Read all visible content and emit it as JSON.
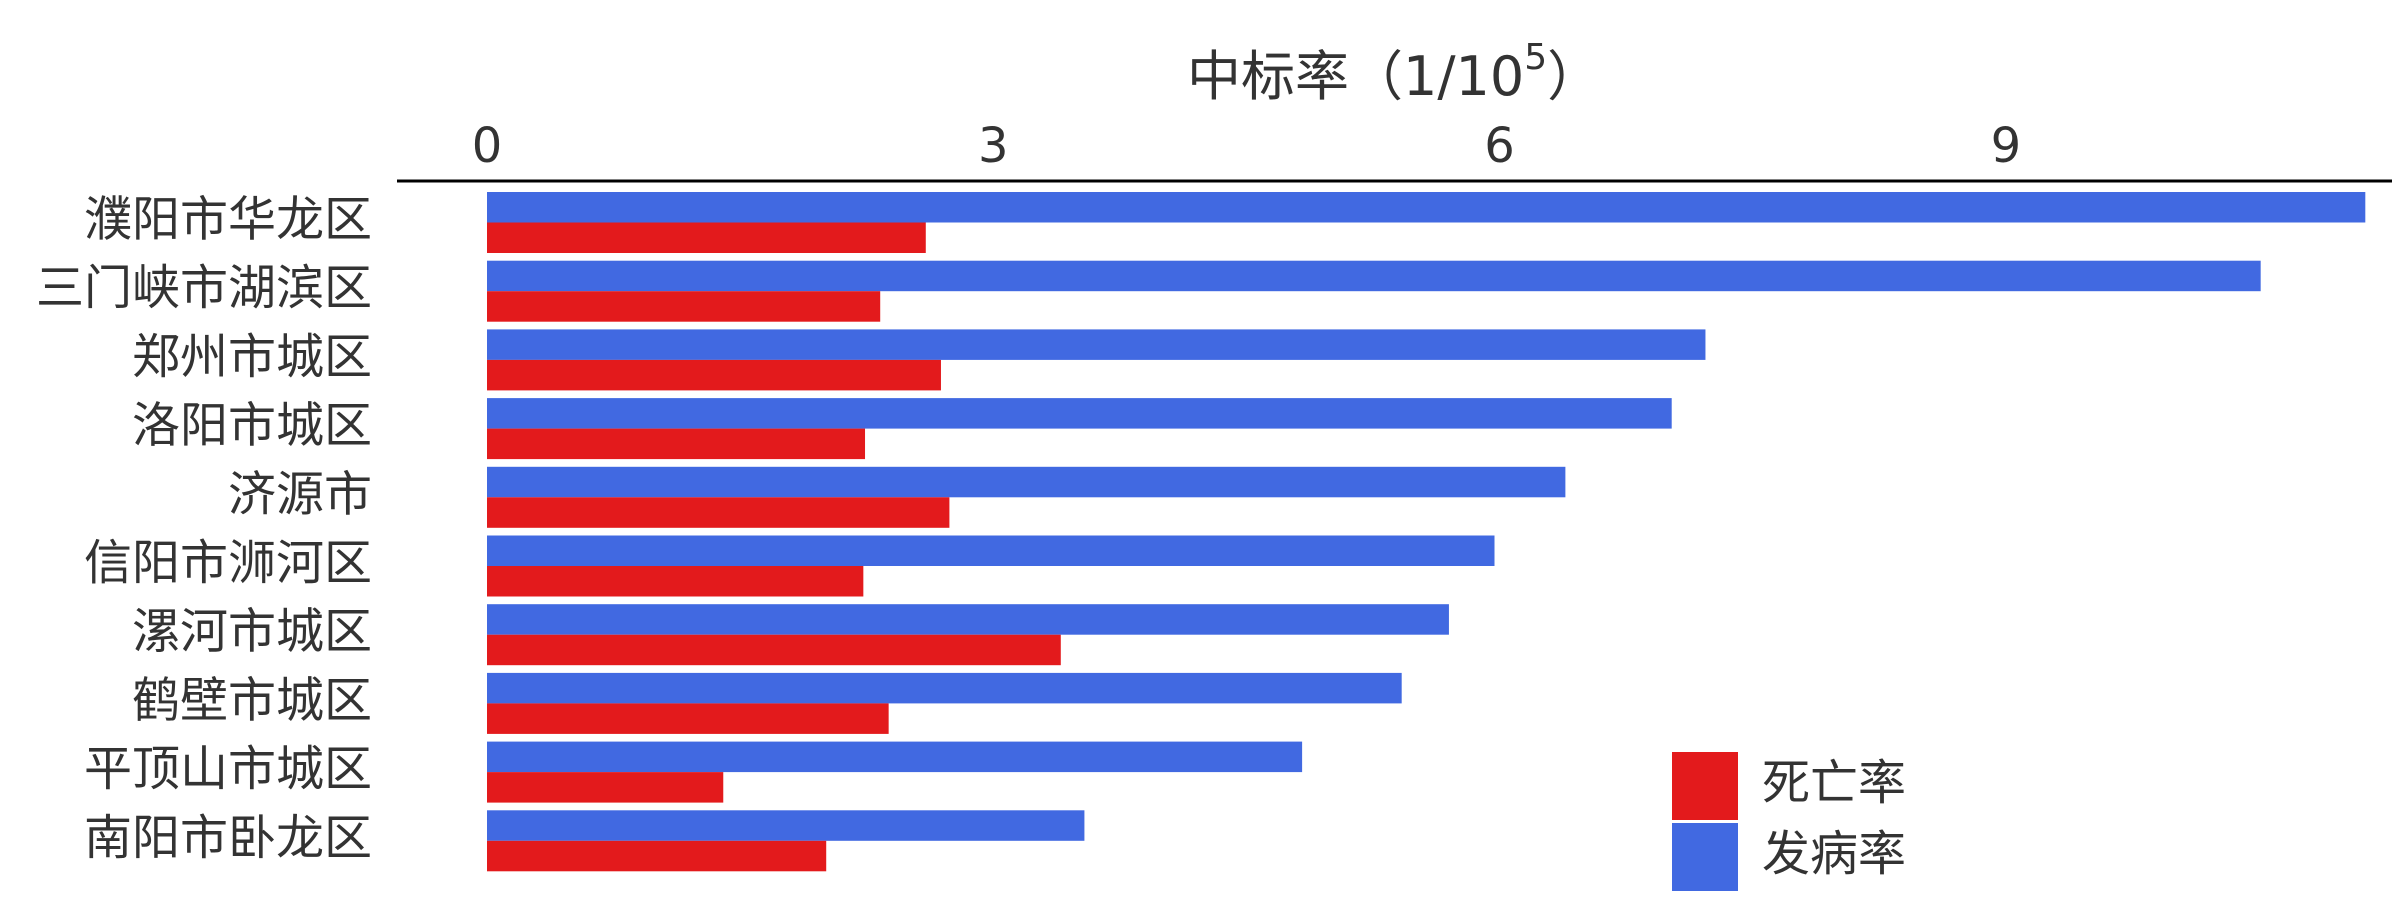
{
  "chart_data": {
    "type": "bar",
    "orientation": "horizontal",
    "xlabel": {
      "main": "中标率（1/10",
      "sup": "5",
      "close": "）"
    },
    "x_axis_position": "top",
    "xlim": [
      0,
      11.3
    ],
    "xticks": [
      0,
      3,
      6,
      9
    ],
    "categories": [
      "濮阳市华龙区",
      "三门峡市湖滨区",
      "郑州市城区",
      "洛阳市城区",
      "济源市",
      "信阳市浉河区",
      "漯河市城区",
      "鹤壁市城区",
      "平顶山市城区",
      "南阳市卧龙区"
    ],
    "series": [
      {
        "name": "发病率",
        "color": "#4169e1",
        "values": [
          11.13,
          10.51,
          7.22,
          7.02,
          6.39,
          5.97,
          5.7,
          5.42,
          4.83,
          3.54
        ]
      },
      {
        "name": "死亡率",
        "color": "#e31a1c",
        "values": [
          2.6,
          2.33,
          2.69,
          2.24,
          2.74,
          2.23,
          3.4,
          2.38,
          1.4,
          2.01
        ]
      }
    ],
    "legend": {
      "position": "bottom-right",
      "order": [
        "死亡率",
        "发病率"
      ]
    },
    "grid": false
  }
}
